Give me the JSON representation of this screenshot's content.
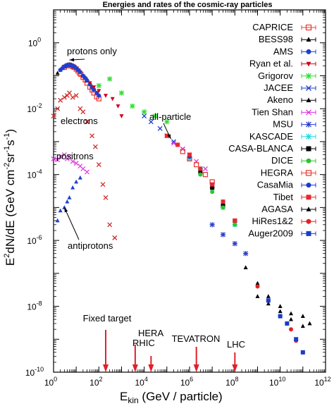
{
  "chart_data": {
    "type": "scatter",
    "title": "Energies and rates of the cosmic-ray particles",
    "xlabel_main": "E",
    "xlabel_sub": "kin",
    "xlabel_rest": "(GeV / particle)",
    "ylabel_parts": [
      "E",
      "2",
      "dN/dE   (GeV cm",
      "-2",
      "sr",
      "-1",
      "s",
      "-1",
      ")"
    ],
    "x_log": true,
    "y_log": true,
    "xlim": [
      1,
      1000000000000.0
    ],
    "ylim": [
      1e-10,
      10
    ],
    "x_ticks": [
      {
        "v": 1,
        "b": "10",
        "e": "0"
      },
      {
        "v": 100,
        "b": "10",
        "e": "2"
      },
      {
        "v": 10000,
        "b": "10",
        "e": "4"
      },
      {
        "v": 1000000,
        "b": "10",
        "e": "6"
      },
      {
        "v": 100000000,
        "b": "10",
        "e": "8"
      },
      {
        "v": 10000000000,
        "b": "10",
        "e": "10"
      },
      {
        "v": 1000000000000,
        "b": "10",
        "e": "12"
      }
    ],
    "y_ticks": [
      {
        "v": 1,
        "b": "10",
        "e": "0"
      },
      {
        "v": 0.01,
        "b": "10",
        "e": "-2"
      },
      {
        "v": 0.0001,
        "b": "10",
        "e": "-4"
      },
      {
        "v": 1e-06,
        "b": "10",
        "e": "-6"
      },
      {
        "v": 1e-08,
        "b": "10",
        "e": "-8"
      },
      {
        "v": 1e-10,
        "b": "10",
        "e": "-10"
      }
    ],
    "series": [
      {
        "name": "CAPRICE",
        "color": "#e8403a",
        "marker": "open-square",
        "x": [
          3,
          4,
          5,
          6,
          7,
          8,
          10,
          12,
          14,
          16,
          20,
          25,
          30,
          40,
          50,
          60,
          80,
          100
        ],
        "y": [
          0.18,
          0.2,
          0.21,
          0.2,
          0.19,
          0.18,
          0.16,
          0.14,
          0.12,
          0.11,
          0.09,
          0.075,
          0.06,
          0.045,
          0.037,
          0.03,
          0.023,
          0.02
        ]
      },
      {
        "name": "BESS98",
        "color": "#000000",
        "marker": "triangle",
        "x": [
          1.5,
          2,
          2.5,
          3,
          4,
          5,
          6,
          7,
          8,
          10,
          12,
          15,
          20,
          30
        ],
        "y": [
          0.12,
          0.15,
          0.17,
          0.19,
          0.21,
          0.22,
          0.21,
          0.2,
          0.19,
          0.17,
          0.15,
          0.13,
          0.1,
          0.07
        ]
      },
      {
        "name": "AMS",
        "color": "#1f3fd0",
        "marker": "filled-circle",
        "x": [
          2,
          2.5,
          3,
          3.5,
          4,
          5,
          6,
          7,
          8,
          10,
          12,
          15,
          20,
          25,
          30,
          40,
          50,
          60,
          80,
          100
        ],
        "y": [
          0.15,
          0.17,
          0.19,
          0.2,
          0.21,
          0.22,
          0.21,
          0.2,
          0.19,
          0.17,
          0.15,
          0.13,
          0.1,
          0.085,
          0.072,
          0.055,
          0.045,
          0.038,
          0.03,
          0.025
        ]
      },
      {
        "name": "Ryan et al.",
        "color": "#d1001a",
        "marker": "down-triangle",
        "x": [
          40,
          60,
          100,
          200,
          400,
          700,
          1000
        ],
        "y": [
          0.06,
          0.045,
          0.035,
          0.025,
          0.02,
          0.012,
          0.006
        ]
      },
      {
        "name": "Grigorov",
        "color": "#33e033",
        "marker": "asterisk",
        "x": [
          100,
          300,
          1000,
          3000,
          10000,
          30000,
          100000
        ],
        "y": [
          0.05,
          0.08,
          0.03,
          0.012,
          0.008,
          0.006,
          0.004
        ]
      },
      {
        "name": "JACEE",
        "color": "#1a3ccc",
        "marker": "x",
        "x": [
          10000,
          20000,
          50000,
          100000,
          200000,
          500000
        ],
        "y": [
          0.006,
          0.004,
          0.0025,
          0.0015,
          0.001,
          0.0006
        ]
      },
      {
        "name": "Akeno",
        "color": "#000000",
        "marker": "triangle",
        "x": [
          1000000000.0,
          3000000000.0,
          10000000000.0,
          30000000000.0,
          100000000000.0
        ],
        "y": [
          2e-08,
          1.2e-08,
          7e-09,
          4e-09,
          2.5e-09
        ]
      },
      {
        "name": "Tien Shan",
        "color": "#e030e0",
        "marker": "x",
        "x": [
          200000,
          500000,
          1000000,
          2000000,
          5000000
        ],
        "y": [
          0.0009,
          0.0006,
          0.0004,
          0.00025,
          0.00015
        ]
      },
      {
        "name": "MSU",
        "color": "#2a3fcc",
        "marker": "asterisk",
        "x": [
          10000000.0,
          30000000.0,
          100000000.0,
          300000000.0
        ],
        "y": [
          3e-06,
          1.5e-06,
          8e-07,
          4e-07
        ]
      },
      {
        "name": "KASCADE",
        "color": "#27d9e0",
        "marker": "asterisk",
        "x": [
          1000000,
          3000000,
          10000000,
          30000000,
          100000000
        ],
        "y": [
          0.0003,
          0.00015,
          4e-05,
          1e-05,
          3e-06
        ]
      },
      {
        "name": "CASA-BLANCA",
        "color": "#000000",
        "marker": "filled-square",
        "x": [
          3000000,
          10000000,
          30000000,
          100000000
        ],
        "y": [
          0.00012,
          4e-05,
          1.2e-05,
          4e-06
        ]
      },
      {
        "name": "DICE",
        "color": "#2fc42f",
        "marker": "filled-circle",
        "x": [
          3000000,
          10000000,
          30000000,
          100000000
        ],
        "y": [
          0.0001,
          3e-05,
          1e-05,
          3e-06
        ]
      },
      {
        "name": "HEGRA",
        "color": "#e8403a",
        "marker": "open-square",
        "x": [
          500000,
          1000000,
          2000000,
          5000000,
          10000000
        ],
        "y": [
          0.0005,
          0.0003,
          0.0002,
          0.0001,
          6e-05
        ]
      },
      {
        "name": "CasaMia",
        "color": "#1a3ccc",
        "marker": "filled-circle",
        "x": [
          300000,
          1000000,
          3000000,
          10000000,
          30000000
        ],
        "y": [
          0.0008,
          0.00035,
          0.00015,
          5e-05,
          1.5e-05
        ]
      },
      {
        "name": "Tibet",
        "color": "#e8282d",
        "marker": "filled-square",
        "x": [
          100000,
          300000,
          1000000,
          3000000,
          10000000,
          30000000,
          100000000
        ],
        "y": [
          0.0015,
          0.0008,
          0.0004,
          0.00015,
          5e-05,
          1.5e-05,
          4e-06
        ]
      },
      {
        "name": "AGASA",
        "color": "#000000",
        "marker": "triangle",
        "x": [
          300000000.0,
          1000000000.0,
          3000000000.0,
          10000000000.0,
          30000000000.0,
          100000000000.0,
          200000000000.0
        ],
        "y": [
          1.5e-07,
          5e-08,
          2e-08,
          1e-08,
          6e-09,
          5e-09,
          3e-09
        ]
      },
      {
        "name": "HiRes1&2",
        "color": "#e82020",
        "marker": "filled-circle",
        "x": [
          1000000000.0,
          3000000000.0,
          10000000000.0,
          30000000000.0,
          50000000000.0,
          100000000000.0
        ],
        "y": [
          4e-08,
          1.5e-08,
          5e-09,
          2e-09,
          9e-10,
          4e-10
        ]
      },
      {
        "name": "Auger2009",
        "color": "#1a3ccc",
        "marker": "filled-square",
        "x": [
          3000000000.0,
          10000000000.0,
          20000000000.0,
          50000000000.0,
          100000000000.0
        ],
        "y": [
          1.5e-08,
          5e-09,
          3e-09,
          1e-09,
          4e-10
        ]
      },
      {
        "name": "",
        "color": "#d52a2a",
        "marker": "x",
        "x": [
          1,
          1.5,
          2,
          3,
          4,
          5,
          7,
          10,
          15,
          20,
          30,
          50,
          70,
          100,
          150,
          200,
          300,
          500
        ],
        "y": [
          0.006,
          0.01,
          0.018,
          0.022,
          0.025,
          0.03,
          0.022,
          0.025,
          0.01,
          0.008,
          0.004,
          0.0015,
          0.0007,
          0.0002,
          5e-05,
          2e-05,
          3e-06,
          1.2e-06
        ]
      },
      {
        "name": "",
        "color": "#e040e0",
        "marker": "x",
        "x": [
          1,
          1.5,
          2,
          3,
          4,
          5,
          7,
          10,
          15,
          20,
          30
        ],
        "y": [
          0.0003,
          0.00028,
          0.00035,
          0.0004,
          0.0003,
          0.00035,
          0.00025,
          0.00022,
          0.00018,
          0.00015,
          0.00012
        ]
      },
      {
        "name": "",
        "color": "#1f3fd0",
        "marker": "triangle",
        "x": [
          1.5,
          2,
          3,
          4,
          5,
          7,
          10,
          15
        ],
        "y": [
          4e-06,
          8e-06,
          1e-05,
          1.5e-05,
          2e-05,
          4e-05,
          6e-05,
          8e-05
        ]
      }
    ],
    "annotations": [
      {
        "text": "protons only",
        "arrow_x": 5,
        "arrow_y": 0.3
      },
      {
        "text": "all-particle",
        "arrow_x": 150000,
        "arrow_y": 0.0012
      },
      {
        "text": "electrons"
      },
      {
        "text": "positrons"
      },
      {
        "text": "antiprotons",
        "arrow_x": 3,
        "arrow_y": 1e-05
      }
    ],
    "accelerators": [
      {
        "name": "Fixed target",
        "energy": 200
      },
      {
        "name": "HERA",
        "energy": 4000
      },
      {
        "name": "RHIC",
        "energy": 20000
      },
      {
        "name": "TEVATRON",
        "energy": 2000000
      },
      {
        "name": "LHC",
        "energy": 100000000
      }
    ],
    "accelerator_color": "#e0202a"
  }
}
